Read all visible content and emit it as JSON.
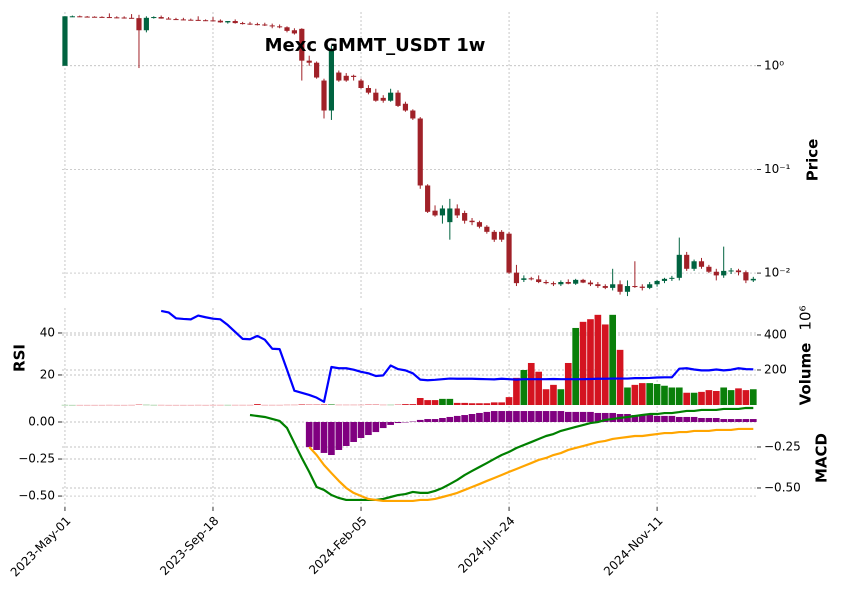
{
  "chart_data": [
    {
      "type": "candlestick",
      "title": "Mexc GMMT_USDT 1w",
      "ylabel": "Price",
      "yscale": "log",
      "ylim": [
        0.0055,
        3.3
      ],
      "yticks": [
        {
          "value": 1,
          "label": "10⁰"
        },
        {
          "value": 0.1,
          "label": "10⁻¹"
        },
        {
          "value": 0.01,
          "label": "10⁻²"
        }
      ],
      "grid": true,
      "up_color": "#006340",
      "down_color": "#a02128",
      "open": [
        1.0,
        3.0,
        3.0,
        2.98,
        2.97,
        2.96,
        2.95,
        2.93,
        2.92,
        2.9,
        2.88,
        2.2,
        2.9,
        2.95,
        2.85,
        2.82,
        2.8,
        2.78,
        2.77,
        2.75,
        2.74,
        2.72,
        2.62,
        2.7,
        2.58,
        2.55,
        2.52,
        2.5,
        2.45,
        2.4,
        2.35,
        2.2,
        2.27,
        1.12,
        1.07,
        0.72,
        0.37,
        0.86,
        0.8,
        0.8,
        0.72,
        0.61,
        0.55,
        0.49,
        0.46,
        0.55,
        0.43,
        0.37,
        0.31,
        0.07,
        0.04,
        0.036,
        0.031,
        0.042,
        0.038,
        0.032,
        0.031,
        0.028,
        0.025,
        0.025,
        0.024,
        0.0101,
        0.0086,
        0.0089,
        0.0087,
        0.0082,
        0.008,
        0.0078,
        0.0082,
        0.0079,
        0.0086,
        0.0081,
        0.0078,
        0.0075,
        0.0072,
        0.0078,
        0.0066,
        0.0075,
        0.0074,
        0.0072,
        0.0078,
        0.0084,
        0.0088,
        0.009,
        0.015,
        0.011,
        0.013,
        0.0115,
        0.0103,
        0.0095,
        0.0105,
        0.0106,
        0.0102,
        0.0085
      ],
      "high": [
        3.0,
        3.05,
        3.05,
        3.02,
        3.0,
        3.0,
        3.2,
        3.0,
        3.0,
        3.15,
        3.1,
        3.0,
        3.0,
        3.05,
        2.95,
        2.9,
        2.9,
        2.85,
        3.0,
        2.8,
        2.95,
        2.8,
        2.7,
        2.8,
        2.65,
        2.65,
        2.6,
        2.6,
        2.55,
        2.5,
        2.4,
        2.3,
        2.3,
        1.25,
        1.1,
        0.75,
        1.56,
        0.9,
        0.85,
        0.82,
        0.75,
        0.65,
        0.6,
        0.52,
        0.6,
        0.58,
        0.45,
        0.38,
        0.32,
        0.072,
        0.045,
        0.045,
        0.052,
        0.046,
        0.04,
        0.034,
        0.032,
        0.029,
        0.026,
        0.026,
        0.025,
        0.012,
        0.0095,
        0.0092,
        0.0095,
        0.0086,
        0.0083,
        0.0085,
        0.0087,
        0.0088,
        0.0088,
        0.0085,
        0.0082,
        0.0078,
        0.011,
        0.0085,
        0.0085,
        0.013,
        0.0078,
        0.0082,
        0.0086,
        0.009,
        0.0094,
        0.022,
        0.016,
        0.0135,
        0.014,
        0.012,
        0.011,
        0.018,
        0.0112,
        0.011,
        0.0106,
        0.0092
      ],
      "low": [
        1.0,
        2.95,
        2.95,
        2.95,
        2.94,
        2.93,
        2.9,
        2.88,
        2.85,
        2.85,
        0.95,
        2.1,
        2.85,
        2.85,
        2.8,
        2.78,
        2.75,
        2.74,
        2.72,
        2.7,
        2.7,
        2.6,
        2.55,
        2.55,
        2.5,
        2.48,
        2.45,
        2.42,
        2.3,
        2.3,
        2.1,
        2.0,
        0.72,
        1.0,
        0.75,
        0.31,
        0.3,
        0.7,
        0.7,
        0.72,
        0.6,
        0.53,
        0.45,
        0.44,
        0.45,
        0.4,
        0.36,
        0.3,
        0.065,
        0.038,
        0.035,
        0.03,
        0.021,
        0.034,
        0.03,
        0.029,
        0.027,
        0.024,
        0.02,
        0.02,
        0.0098,
        0.0075,
        0.0082,
        0.0085,
        0.008,
        0.0078,
        0.0075,
        0.0075,
        0.0078,
        0.0077,
        0.008,
        0.0075,
        0.0072,
        0.007,
        0.0068,
        0.0062,
        0.006,
        0.0072,
        0.0068,
        0.007,
        0.0074,
        0.008,
        0.0084,
        0.0085,
        0.0105,
        0.0105,
        0.011,
        0.01,
        0.0085,
        0.009,
        0.0098,
        0.0095,
        0.008,
        0.0082
      ],
      "close": [
        3.0,
        3.0,
        2.98,
        2.97,
        2.96,
        2.95,
        2.93,
        2.92,
        2.9,
        2.88,
        2.2,
        2.9,
        2.95,
        2.85,
        2.82,
        2.8,
        2.78,
        2.77,
        2.75,
        2.74,
        2.72,
        2.62,
        2.7,
        2.58,
        2.55,
        2.52,
        2.5,
        2.45,
        2.4,
        2.35,
        2.17,
        2.05,
        1.12,
        1.07,
        0.77,
        0.37,
        1.39,
        0.72,
        0.72,
        0.78,
        0.61,
        0.55,
        0.46,
        0.46,
        0.55,
        0.41,
        0.37,
        0.31,
        0.07,
        0.039,
        0.036,
        0.042,
        0.042,
        0.036,
        0.032,
        0.031,
        0.028,
        0.025,
        0.021,
        0.021,
        0.0101,
        0.008,
        0.0089,
        0.0087,
        0.0082,
        0.008,
        0.0078,
        0.0082,
        0.0079,
        0.0086,
        0.0081,
        0.0078,
        0.0075,
        0.0072,
        0.0078,
        0.0066,
        0.0075,
        0.0074,
        0.0072,
        0.0078,
        0.0084,
        0.0088,
        0.009,
        0.015,
        0.011,
        0.013,
        0.0115,
        0.0103,
        0.0095,
        0.0105,
        0.0106,
        0.0102,
        0.0085,
        0.0088
      ]
    },
    {
      "type": "combo",
      "ylabel": "RSI",
      "ylim": [
        5.7,
        51.9
      ],
      "yticks": [
        20,
        40
      ],
      "y2label": "Volume",
      "y2_offset_text": "10⁶",
      "y2lim": [
        0,
        554
      ],
      "y2ticks": [
        200,
        400
      ],
      "grid": true,
      "series": [
        {
          "type": "line",
          "color": "#0000ff",
          "values": [
            null,
            null,
            null,
            null,
            null,
            null,
            null,
            null,
            null,
            null,
            null,
            null,
            null,
            50.5,
            49.8,
            47,
            46.7,
            46.5,
            48.3,
            47.5,
            46.8,
            46.5,
            43.8,
            40.5,
            37.2,
            37,
            38.6,
            36.8,
            32.5,
            32.3,
            22.5,
            12.5,
            11.5,
            10.5,
            9.2,
            7.2,
            23.8,
            23.2,
            23.2,
            22.5,
            21.5,
            20.8,
            19.5,
            19.8,
            24.5,
            22.8,
            22.2,
            20.8,
            17.8,
            17.5,
            17.7,
            18,
            18.3,
            18.2,
            18.2,
            18.2,
            18.1,
            18,
            17.9,
            18.2,
            18,
            17.8,
            18,
            18,
            18,
            18,
            18.1,
            18,
            18,
            18,
            18,
            18.1,
            18.2,
            18.2,
            18.3,
            18.3,
            18.3,
            18.5,
            18.5,
            18.6,
            18.8,
            18.9,
            18.9,
            23,
            23.2,
            22.6,
            22.2,
            22.2,
            22.6,
            22.2,
            22.5,
            23.2,
            22.8,
            22.7
          ]
        },
        {
          "type": "bar",
          "axis": "y2",
          "up_color": "#0a7f0a",
          "down_color": "#d41420",
          "values": [
            0.5,
            0.3,
            0.3,
            0.3,
            0.3,
            0.3,
            0.5,
            0.3,
            0.3,
            0.5,
            2,
            1,
            0.5,
            0.5,
            0.3,
            0.3,
            0.3,
            0.3,
            0.5,
            0.3,
            0.5,
            0.5,
            0.5,
            0.5,
            0.5,
            0.5,
            5,
            0.5,
            0.5,
            0.5,
            1,
            1,
            3,
            2,
            2,
            3,
            3,
            1,
            1,
            1,
            1,
            2,
            2,
            1,
            1,
            2,
            5,
            5,
            40,
            28,
            28,
            35,
            35,
            12,
            12,
            10,
            10,
            10,
            15,
            15,
            45,
            155,
            200,
            240,
            190,
            90,
            115,
            90,
            240,
            440,
            475,
            490,
            515,
            460,
            515,
            315,
            100,
            115,
            125,
            125,
            120,
            110,
            100,
            100,
            70,
            70,
            75,
            85,
            80,
            100,
            85,
            95,
            85,
            90
          ]
        }
      ]
    },
    {
      "type": "combo",
      "y2label": "MACD",
      "ylim": [
        -0.574,
        0.108
      ],
      "yticks": [
        {
          "value": 0,
          "label": "0.00"
        },
        {
          "value": -0.25,
          "label": "−0.25"
        },
        {
          "value": -0.5,
          "label": "−0.50"
        }
      ],
      "y2lim": [
        -0.616,
        0
      ],
      "y2ticks": [
        {
          "value": -0.25,
          "label": "−0.25"
        },
        {
          "value": -0.5,
          "label": "−0.50"
        }
      ],
      "xlim": [
        -0.4,
        93.5
      ],
      "xticks": [
        {
          "value": 0,
          "label": "2023-May-01"
        },
        {
          "value": 20,
          "label": "2023-Sep-18"
        },
        {
          "value": 40,
          "label": "2024-Feb-05"
        },
        {
          "value": 60,
          "label": "2024-Jun-24"
        },
        {
          "value": 80,
          "label": "2024-Nov-11"
        }
      ],
      "grid": true,
      "series": [
        {
          "type": "bar",
          "color": "#800080",
          "values": [
            null,
            null,
            null,
            null,
            null,
            null,
            null,
            null,
            null,
            null,
            null,
            null,
            null,
            null,
            null,
            null,
            null,
            null,
            null,
            null,
            null,
            null,
            null,
            null,
            null,
            null,
            null,
            null,
            null,
            null,
            null,
            null,
            null,
            -0.169,
            -0.189,
            -0.209,
            -0.223,
            -0.189,
            -0.162,
            -0.135,
            -0.108,
            -0.088,
            -0.068,
            -0.041,
            -0.02,
            -0.007,
            -0.003,
            0.003,
            0.014,
            0.02,
            0.02,
            0.027,
            0.034,
            0.041,
            0.047,
            0.054,
            0.061,
            0.068,
            0.074,
            0.074,
            0.074,
            0.074,
            0.074,
            0.074,
            0.074,
            0.074,
            0.074,
            0.074,
            0.068,
            0.068,
            0.068,
            0.068,
            0.061,
            0.061,
            0.061,
            0.054,
            0.054,
            0.047,
            0.047,
            0.047,
            0.041,
            0.041,
            0.041,
            0.034,
            0.034,
            0.034,
            0.027,
            0.027,
            0.027,
            0.02,
            0.02,
            0.02,
            0.02,
            0.02
          ]
        },
        {
          "type": "line",
          "axis": "y2",
          "color": "#008000",
          "values": [
            null,
            null,
            null,
            null,
            null,
            null,
            null,
            null,
            null,
            null,
            null,
            null,
            null,
            null,
            null,
            null,
            null,
            null,
            null,
            null,
            null,
            null,
            null,
            null,
            null,
            -0.055,
            -0.061,
            -0.067,
            -0.079,
            -0.091,
            -0.134,
            -0.226,
            -0.317,
            -0.402,
            -0.494,
            -0.512,
            -0.543,
            -0.561,
            -0.573,
            -0.573,
            -0.573,
            -0.573,
            -0.573,
            -0.567,
            -0.555,
            -0.543,
            -0.537,
            -0.524,
            -0.53,
            -0.53,
            -0.518,
            -0.5,
            -0.476,
            -0.451,
            -0.421,
            -0.396,
            -0.372,
            -0.348,
            -0.323,
            -0.299,
            -0.28,
            -0.256,
            -0.238,
            -0.22,
            -0.201,
            -0.183,
            -0.171,
            -0.152,
            -0.14,
            -0.128,
            -0.116,
            -0.104,
            -0.098,
            -0.085,
            -0.079,
            -0.073,
            -0.067,
            -0.061,
            -0.055,
            -0.049,
            -0.049,
            -0.043,
            -0.043,
            -0.037,
            -0.03,
            -0.03,
            -0.024,
            -0.024,
            -0.024,
            -0.018,
            -0.018,
            -0.018,
            -0.012,
            -0.012
          ]
        },
        {
          "type": "line",
          "axis": "y2",
          "color": "#ffa500",
          "values": [
            null,
            null,
            null,
            null,
            null,
            null,
            null,
            null,
            null,
            null,
            null,
            null,
            null,
            null,
            null,
            null,
            null,
            null,
            null,
            null,
            null,
            null,
            null,
            null,
            null,
            null,
            null,
            null,
            null,
            null,
            null,
            null,
            null,
            -0.25,
            -0.299,
            -0.36,
            -0.409,
            -0.457,
            -0.5,
            -0.53,
            -0.549,
            -0.567,
            -0.573,
            -0.579,
            -0.579,
            -0.579,
            -0.579,
            -0.579,
            -0.573,
            -0.573,
            -0.567,
            -0.555,
            -0.543,
            -0.53,
            -0.512,
            -0.494,
            -0.476,
            -0.457,
            -0.439,
            -0.421,
            -0.402,
            -0.384,
            -0.366,
            -0.348,
            -0.329,
            -0.317,
            -0.299,
            -0.287,
            -0.268,
            -0.256,
            -0.244,
            -0.232,
            -0.22,
            -0.213,
            -0.201,
            -0.195,
            -0.189,
            -0.183,
            -0.183,
            -0.177,
            -0.171,
            -0.165,
            -0.165,
            -0.159,
            -0.159,
            -0.152,
            -0.152,
            -0.152,
            -0.146,
            -0.146,
            -0.146,
            -0.14,
            -0.14,
            -0.14
          ]
        }
      ]
    }
  ]
}
